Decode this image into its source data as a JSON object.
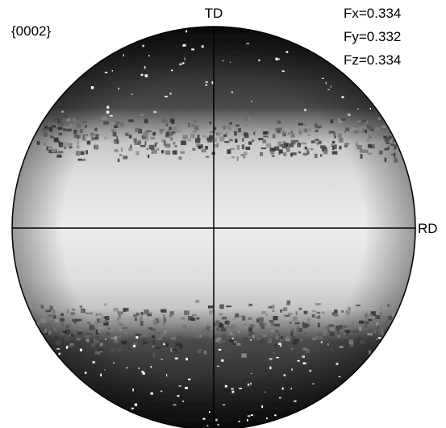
{
  "figure": {
    "plane_label": "{0002}",
    "axis_top_label": "TD",
    "axis_right_label": "RD",
    "fractions": [
      "Fx=0.334",
      "Fy=0.332",
      "Fz=0.334"
    ]
  },
  "colors": {
    "background": "#ffffff",
    "dark_pole": "#202020",
    "bright_band": "#e6e6e6",
    "outline": "#000000"
  }
}
